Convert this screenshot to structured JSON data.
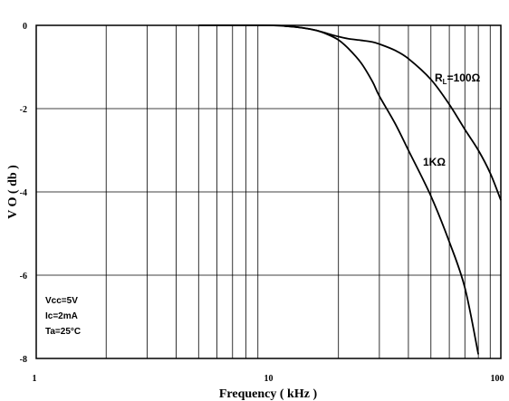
{
  "chart_data": {
    "type": "line",
    "x_scale": "log",
    "xlim": [
      1,
      100
    ],
    "ylim": [
      -8,
      0
    ],
    "grid": true,
    "xlabel": "Frequency ( kHz )",
    "ylabel": "V O ( db )",
    "x_ticks": [
      "1",
      "10",
      "100"
    ],
    "y_ticks": [
      "0",
      "-2",
      "-4",
      "-6",
      "-8"
    ],
    "conditions": [
      "Vcc=5V",
      "Ic=2mA",
      "Ta=25°C"
    ],
    "series": [
      {
        "name": "RL=100Ω",
        "label_main": "R",
        "label_sub": "L",
        "label_rest": "=100Ω",
        "x": [
          5,
          10,
          12,
          14,
          16,
          18,
          20,
          22,
          25,
          28,
          30,
          35,
          40,
          50,
          60,
          70,
          80,
          90,
          100
        ],
        "y": [
          0,
          0,
          -0.02,
          -0.06,
          -0.12,
          -0.2,
          -0.27,
          -0.32,
          -0.36,
          -0.4,
          -0.45,
          -0.6,
          -0.8,
          -1.3,
          -1.9,
          -2.5,
          -3.0,
          -3.55,
          -4.2
        ]
      },
      {
        "name": "1KΩ",
        "x": [
          5,
          10,
          12,
          14,
          16,
          18,
          20,
          22,
          25,
          28,
          30,
          35,
          40,
          50,
          60,
          70,
          80
        ],
        "y": [
          0,
          0,
          -0.02,
          -0.06,
          -0.12,
          -0.22,
          -0.35,
          -0.55,
          -0.9,
          -1.35,
          -1.7,
          -2.35,
          -3.0,
          -4.1,
          -5.2,
          -6.3,
          -7.9
        ]
      }
    ]
  }
}
